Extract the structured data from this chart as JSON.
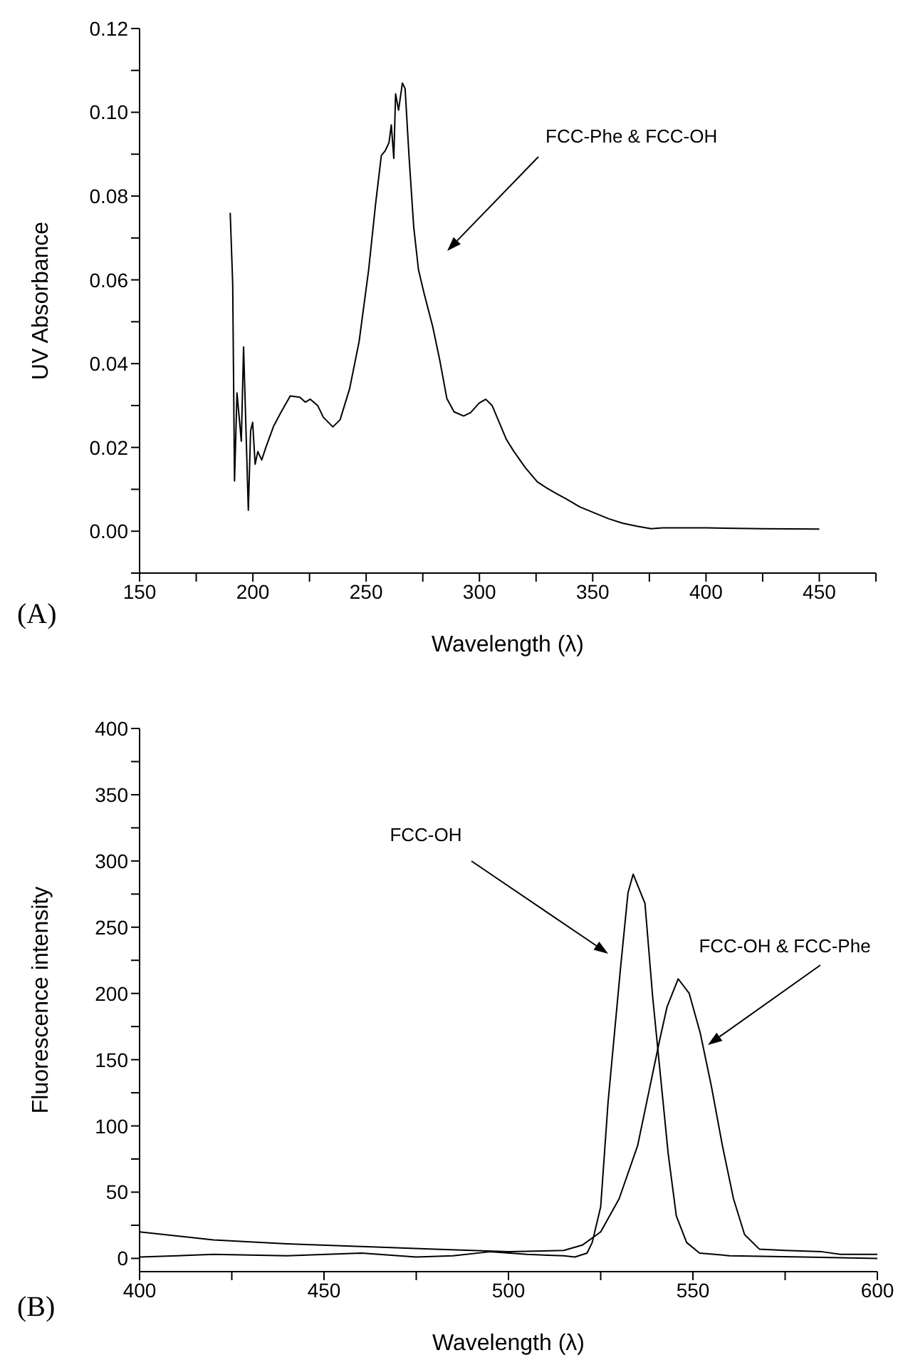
{
  "chart_data": [
    {
      "type": "line",
      "xlabel": "Wavelength (λ)",
      "ylabel": "UV Absorbance",
      "xlim": [
        150,
        475
      ],
      "ylim": [
        -0.01,
        0.12
      ],
      "xticks": [
        150,
        {
          "value": 175,
          "label": null
        },
        200,
        {
          "value": 225,
          "label": null
        },
        250,
        {
          "value": 275,
          "label": null
        },
        300,
        {
          "value": 325,
          "label": null
        },
        350,
        {
          "value": 375,
          "label": null
        },
        400,
        {
          "value": 425,
          "label": null
        },
        450,
        {
          "value": 475,
          "label": null
        }
      ],
      "yticks": [
        {
          "value": -0.01,
          "label": null
        },
        {
          "value": 0,
          "label": "0.00"
        },
        {
          "value": 0.01,
          "label": null
        },
        {
          "value": 0.02,
          "label": "0.02"
        },
        {
          "value": 0.03,
          "label": null
        },
        {
          "value": 0.04,
          "label": "0.04"
        },
        {
          "value": 0.05,
          "label": null
        },
        {
          "value": 0.06,
          "label": "0.06"
        },
        {
          "value": 0.07,
          "label": null
        },
        {
          "value": 0.08,
          "label": "0.08"
        },
        {
          "value": 0.09,
          "label": null
        },
        {
          "value": 0.1,
          "label": "0.10"
        },
        {
          "value": 0.11,
          "label": null
        },
        {
          "value": 0.12,
          "label": "0.12"
        }
      ],
      "annotations": [
        "FCC-Phe & FCC-OH",
        "(A)"
      ],
      "series": [
        {
          "color": "#000000",
          "x": [
            190,
            191.1,
            191.9,
            193,
            194.9,
            195.9,
            198,
            199,
            199.9,
            201,
            202.2,
            203.9,
            205.6,
            209.1,
            212.3,
            216.5,
            220.7,
            223.2,
            225.3,
            228.6,
            231.1,
            235.3,
            238.5,
            242.7,
            246.9,
            251.1,
            254.2,
            256.7,
            258.4,
            260.1,
            261.1,
            262.2,
            263,
            264.3,
            266,
            267.2,
            268.9,
            271,
            273.1,
            275.6,
            279.4,
            282.5,
            285.6,
            288.8,
            293,
            296.1,
            299.9,
            302.8,
            305.6,
            308.7,
            311.8,
            315,
            320.2,
            325.5,
            329.7,
            333.9,
            338,
            344.3,
            350.6,
            356.9,
            363.2,
            369.5,
            375.8,
            381,
            400,
            425,
            450
          ],
          "values": [
            0.076,
            0.059,
            0.012,
            0.033,
            0.0215,
            0.044,
            0.005,
            0.024,
            0.026,
            0.016,
            0.019,
            0.017,
            0.0198,
            0.025,
            0.0283,
            0.0323,
            0.032,
            0.0308,
            0.0315,
            0.03,
            0.0272,
            0.0249,
            0.0266,
            0.034,
            0.0453,
            0.0624,
            0.0783,
            0.0897,
            0.0908,
            0.0928,
            0.097,
            0.089,
            0.1044,
            0.1005,
            0.107,
            0.1056,
            0.0897,
            0.0726,
            0.0624,
            0.0567,
            0.0488,
            0.0408,
            0.0317,
            0.0285,
            0.0275,
            0.0283,
            0.0306,
            0.0315,
            0.03,
            0.026,
            0.022,
            0.0192,
            0.0152,
            0.0118,
            0.0103,
            0.009,
            0.0078,
            0.0058,
            0.0044,
            0.003,
            0.0019,
            0.0012,
            0.0006,
            0.0008,
            0.0008,
            0.0006,
            0.0005
          ]
        }
      ]
    },
    {
      "type": "line",
      "xlabel": "Wavelength (λ)",
      "ylabel": "Fluorescence intensity",
      "xlim": [
        400,
        600
      ],
      "ylim": [
        -10,
        400
      ],
      "xticks": [
        400,
        {
          "value": 425,
          "label": null
        },
        450,
        {
          "value": 475,
          "label": null
        },
        500,
        {
          "value": 525,
          "label": null
        },
        550,
        {
          "value": 575,
          "label": null
        },
        600
      ],
      "yticks": [
        0,
        {
          "value": 25,
          "label": null
        },
        50,
        {
          "value": 75,
          "label": null
        },
        100,
        {
          "value": 125,
          "label": null
        },
        150,
        {
          "value": 175,
          "label": null
        },
        200,
        {
          "value": 225,
          "label": null
        },
        250,
        {
          "value": 275,
          "label": null
        },
        300,
        {
          "value": 325,
          "label": null
        },
        350,
        {
          "value": 375,
          "label": null
        },
        400
      ],
      "annotations": [
        "FCC-OH",
        "FCC-OH & FCC-Phe",
        "(B)"
      ],
      "series": [
        {
          "color": "#000000",
          "x": [
            400,
            420,
            440,
            460,
            475,
            485,
            495,
            505,
            515,
            518,
            521.3,
            522.7,
            525,
            527,
            530.3,
            532.4,
            533.8,
            537,
            539.1,
            541.2,
            543.3,
            545.5,
            548.3,
            551.8,
            560,
            580,
            600
          ],
          "values": [
            1,
            3,
            2,
            4,
            1,
            2,
            5,
            3,
            2,
            1,
            4,
            12,
            39,
            118,
            217,
            276,
            290,
            268,
            197,
            138,
            79,
            32,
            12,
            4,
            2,
            1,
            0
          ]
        },
        {
          "color": "#000000",
          "x": [
            400,
            420,
            440,
            460,
            480,
            500,
            515,
            520,
            525,
            530,
            535,
            538,
            541,
            543,
            546,
            549,
            552,
            555,
            558,
            561,
            564,
            568,
            575,
            585,
            590,
            600
          ],
          "values": [
            20,
            14,
            11,
            9,
            7,
            5,
            6,
            10,
            20,
            45,
            85,
            125,
            165,
            190,
            211,
            200,
            170,
            130,
            85,
            45,
            18,
            7,
            6,
            5,
            3,
            3
          ]
        }
      ]
    }
  ]
}
